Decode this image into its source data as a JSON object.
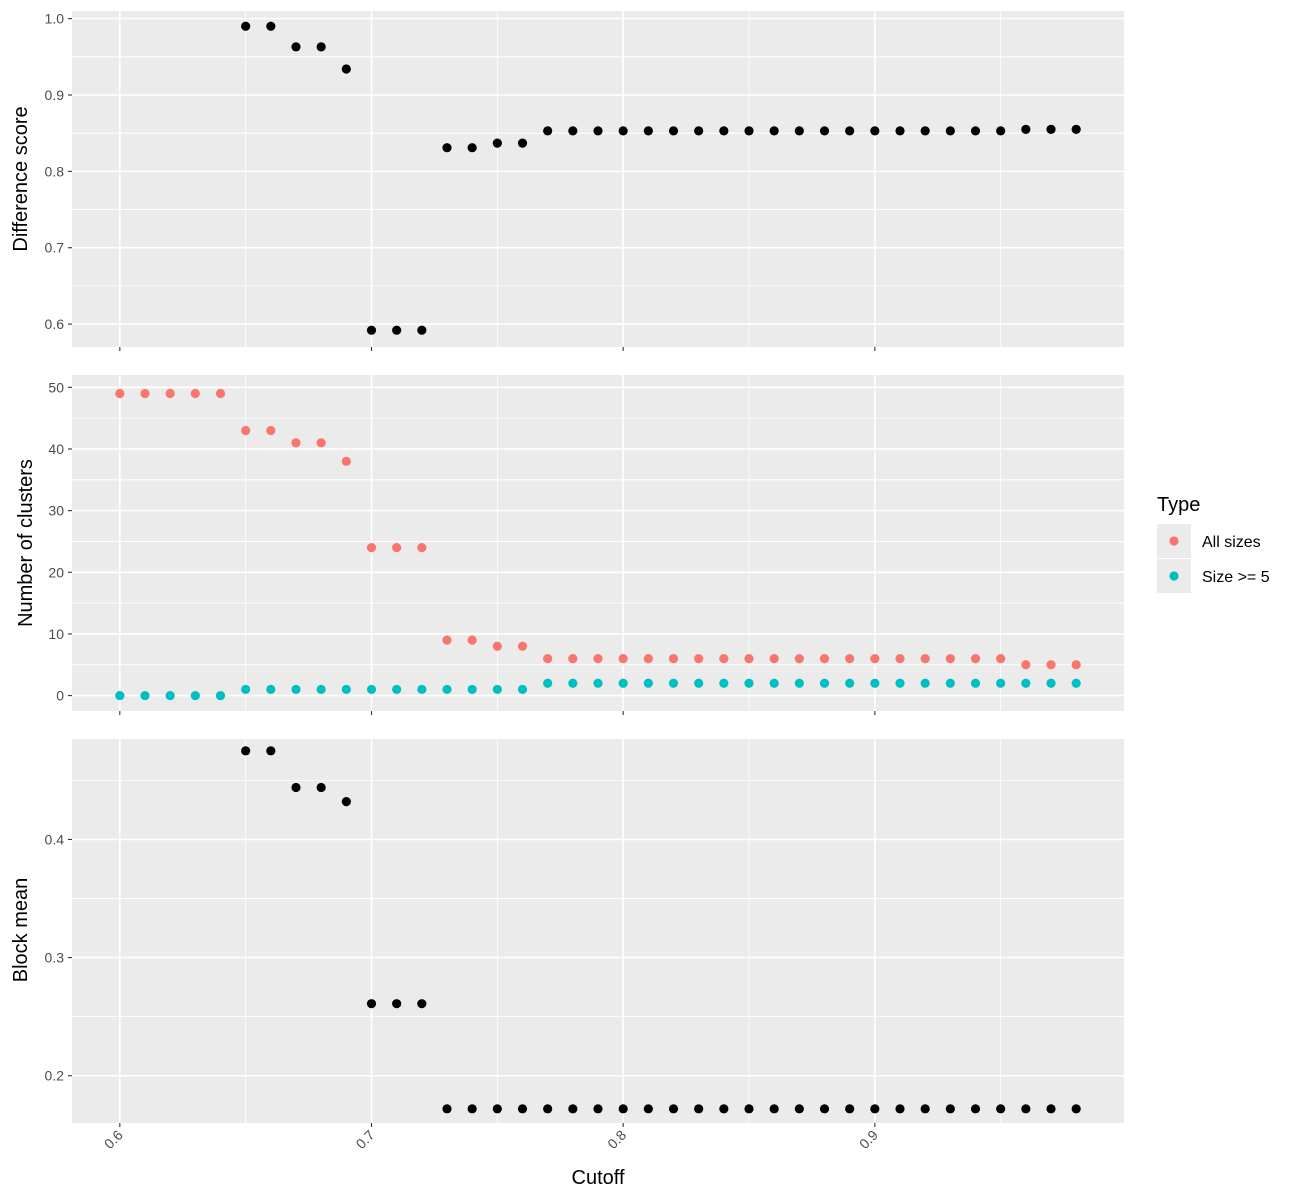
{
  "chart_data": [
    {
      "type": "scatter",
      "ylabel": "Difference score",
      "xlabel": "",
      "ylim": [
        0.57,
        1.01
      ],
      "yticks": [
        0.6,
        0.7,
        0.8,
        0.9,
        1.0
      ],
      "ytick_labels": [
        "0.6",
        "0.7",
        "0.8",
        "0.9",
        "1.0"
      ],
      "series": [
        {
          "color": "#000000",
          "x": [
            0.65,
            0.66,
            0.67,
            0.68,
            0.69,
            0.7,
            0.71,
            0.72,
            0.73,
            0.74,
            0.75,
            0.76,
            0.77,
            0.78,
            0.79,
            0.8,
            0.81,
            0.82,
            0.83,
            0.84,
            0.85,
            0.86,
            0.87,
            0.88,
            0.89,
            0.9,
            0.91,
            0.92,
            0.93,
            0.94,
            0.95,
            0.96,
            0.97,
            0.98
          ],
          "y": [
            0.99,
            0.99,
            0.963,
            0.963,
            0.934,
            0.592,
            0.592,
            0.592,
            0.831,
            0.831,
            0.837,
            0.837,
            0.853,
            0.853,
            0.853,
            0.853,
            0.853,
            0.853,
            0.853,
            0.853,
            0.853,
            0.853,
            0.853,
            0.853,
            0.853,
            0.853,
            0.853,
            0.853,
            0.853,
            0.853,
            0.853,
            0.855,
            0.855,
            0.855
          ]
        }
      ]
    },
    {
      "type": "scatter",
      "ylabel": "Number of clusters",
      "xlabel": "",
      "ylim": [
        -2.5,
        52
      ],
      "yticks": [
        0,
        10,
        20,
        30,
        40,
        50
      ],
      "ytick_labels": [
        "0",
        "10",
        "20",
        "30",
        "40",
        "50"
      ],
      "legend": {
        "title": "Type",
        "placement": "right"
      },
      "series": [
        {
          "name": "All sizes",
          "color": "#F8766D",
          "x": [
            0.6,
            0.61,
            0.62,
            0.63,
            0.64,
            0.65,
            0.66,
            0.67,
            0.68,
            0.69,
            0.7,
            0.71,
            0.72,
            0.73,
            0.74,
            0.75,
            0.76,
            0.77,
            0.78,
            0.79,
            0.8,
            0.81,
            0.82,
            0.83,
            0.84,
            0.85,
            0.86,
            0.87,
            0.88,
            0.89,
            0.9,
            0.91,
            0.92,
            0.93,
            0.94,
            0.95,
            0.96,
            0.97,
            0.98
          ],
          "y": [
            49,
            49,
            49,
            49,
            49,
            43,
            43,
            41,
            41,
            38,
            24,
            24,
            24,
            9,
            9,
            8,
            8,
            6,
            6,
            6,
            6,
            6,
            6,
            6,
            6,
            6,
            6,
            6,
            6,
            6,
            6,
            6,
            6,
            6,
            6,
            6,
            5,
            5,
            5
          ]
        },
        {
          "name": "Size >= 5",
          "color": "#00BFC4",
          "x": [
            0.6,
            0.61,
            0.62,
            0.63,
            0.64,
            0.65,
            0.66,
            0.67,
            0.68,
            0.69,
            0.7,
            0.71,
            0.72,
            0.73,
            0.74,
            0.75,
            0.76,
            0.77,
            0.78,
            0.79,
            0.8,
            0.81,
            0.82,
            0.83,
            0.84,
            0.85,
            0.86,
            0.87,
            0.88,
            0.89,
            0.9,
            0.91,
            0.92,
            0.93,
            0.94,
            0.95,
            0.96,
            0.97,
            0.98
          ],
          "y": [
            0,
            0,
            0,
            0,
            0,
            1,
            1,
            1,
            1,
            1,
            1,
            1,
            1,
            1,
            1,
            1,
            1,
            2,
            2,
            2,
            2,
            2,
            2,
            2,
            2,
            2,
            2,
            2,
            2,
            2,
            2,
            2,
            2,
            2,
            2,
            2,
            2,
            2,
            2
          ]
        }
      ]
    },
    {
      "type": "scatter",
      "ylabel": "Block mean",
      "xlabel": "Cutoff",
      "ylim": [
        0.16,
        0.485
      ],
      "yticks": [
        0.2,
        0.3,
        0.4
      ],
      "ytick_labels": [
        "0.2",
        "0.3",
        "0.4"
      ],
      "xticks": [
        0.6,
        0.7,
        0.8,
        0.9
      ],
      "xtick_labels": [
        "0.6",
        "0.7",
        "0.8",
        "0.9"
      ],
      "xlim": [
        0.581,
        0.999
      ],
      "series": [
        {
          "color": "#000000",
          "x": [
            0.65,
            0.66,
            0.67,
            0.68,
            0.69,
            0.7,
            0.71,
            0.72,
            0.73,
            0.74,
            0.75,
            0.76,
            0.77,
            0.78,
            0.79,
            0.8,
            0.81,
            0.82,
            0.83,
            0.84,
            0.85,
            0.86,
            0.87,
            0.88,
            0.89,
            0.9,
            0.91,
            0.92,
            0.93,
            0.94,
            0.95,
            0.96,
            0.97,
            0.98
          ],
          "y": [
            0.475,
            0.475,
            0.444,
            0.444,
            0.432,
            0.261,
            0.261,
            0.261,
            0.172,
            0.172,
            0.172,
            0.172,
            0.172,
            0.172,
            0.172,
            0.172,
            0.172,
            0.172,
            0.172,
            0.172,
            0.172,
            0.172,
            0.172,
            0.172,
            0.172,
            0.172,
            0.172,
            0.172,
            0.172,
            0.172,
            0.172,
            0.172,
            0.172,
            0.172
          ]
        }
      ]
    }
  ]
}
